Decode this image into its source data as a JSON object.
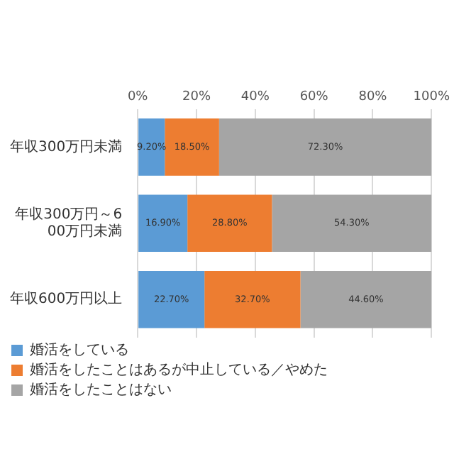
{
  "chart_data": {
    "type": "bar",
    "orientation": "horizontal",
    "stacked": true,
    "categories": [
      "年収300万円未満",
      "年収300万円～600万円未満",
      "年収600万円以上"
    ],
    "series": [
      {
        "name": "婚活をしている",
        "color": "#5b9bd5",
        "values": [
          9.2,
          16.9,
          22.7
        ],
        "value_labels": [
          "9.20%",
          "16.90%",
          "22.70%"
        ]
      },
      {
        "name": "婚活をしたことはあるが中止している／やめた",
        "color": "#ed7d31",
        "values": [
          18.5,
          28.8,
          32.7
        ],
        "value_labels": [
          "18.50%",
          "28.80%",
          "32.70%"
        ]
      },
      {
        "name": "婚活をしたことはない",
        "color": "#a5a5a5",
        "values": [
          72.3,
          54.3,
          44.6
        ],
        "value_labels": [
          "72.30%",
          "54.30%",
          "44.60%"
        ]
      }
    ],
    "xlim": [
      0,
      100
    ],
    "xticks": [
      {
        "value": 0,
        "label": "0%"
      },
      {
        "value": 20,
        "label": "20%"
      },
      {
        "value": 40,
        "label": "40%"
      },
      {
        "value": 60,
        "label": "60%"
      },
      {
        "value": 80,
        "label": "80%"
      },
      {
        "value": 100,
        "label": "100%"
      }
    ],
    "grid": "x",
    "legend": "bottom"
  }
}
